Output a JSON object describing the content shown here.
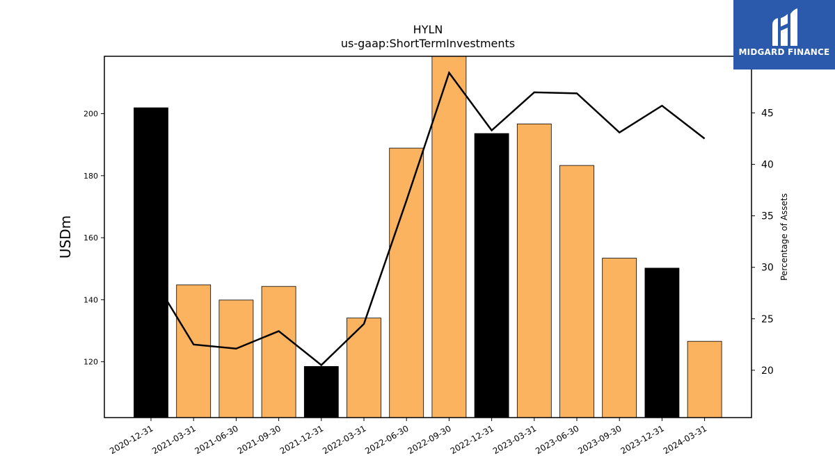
{
  "brand": {
    "name": "MIDGARD FINANCE",
    "bg_color": "#2b5aad",
    "icon": "midgard-logo-icon"
  },
  "chart_data": {
    "type": "bar",
    "title": "HYLN",
    "subtitle": "us-gaap:ShortTermInvestments",
    "ylabel": "USDm",
    "y2label": "Percentage of Assets",
    "categories": [
      "2020-12-31",
      "2021-03-31",
      "2021-06-30",
      "2021-09-30",
      "2021-12-31",
      "2022-03-31",
      "2022-06-30",
      "2022-09-30",
      "2022-12-31",
      "2023-03-31",
      "2023-06-30",
      "2023-09-30",
      "2023-12-31",
      "2024-03-31"
    ],
    "series": [
      {
        "type": "bar",
        "values": [
          201.9,
          144.8,
          139.9,
          144.3,
          118.5,
          134.1,
          188.9,
          218.5,
          193.6,
          196.7,
          183.3,
          153.4,
          150.2,
          126.6
        ]
      },
      {
        "type": "line",
        "axis": "right",
        "values": [
          29.3,
          22.5,
          22.1,
          23.8,
          20.5,
          24.5,
          36.5,
          48.9,
          43.3,
          47.0,
          46.9,
          43.1,
          45.7,
          42.5
        ]
      }
    ],
    "bar_colors": {
      "year_end": "#000000",
      "quarter": "#fbb360"
    },
    "line_color": "#000000",
    "ylim": [
      102,
      218.5
    ],
    "y2lim": [
      15.4,
      50.5
    ],
    "yticks": [
      120,
      140,
      160,
      180,
      200
    ],
    "y2ticks": [
      20,
      25,
      30,
      35,
      40,
      45
    ],
    "grid": false,
    "legend": "none"
  }
}
